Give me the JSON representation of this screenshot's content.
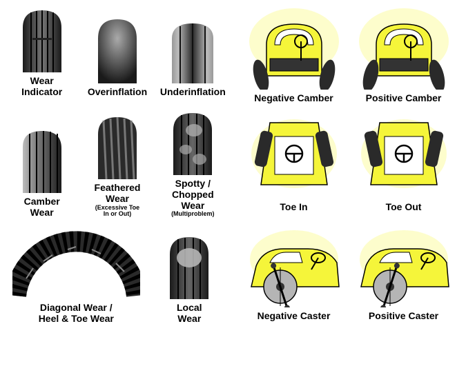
{
  "colors": {
    "tire_dark": "#2a2a2a",
    "tire_mid": "#4a4a4a",
    "tire_light": "#888888",
    "tire_highlight": "#bbbbbb",
    "car_body": "#f5f53a",
    "car_glow": "#fcfc9a",
    "car_outline": "#000000",
    "wheel_gray": "#999999",
    "bg": "#ffffff"
  },
  "tires": {
    "row1": [
      {
        "label": "Wear\nIndicator",
        "sublabel": ""
      },
      {
        "label": "Overinflation",
        "sublabel": ""
      },
      {
        "label": "Underinflation",
        "sublabel": ""
      }
    ],
    "row2": [
      {
        "label": "Camber\nWear",
        "sublabel": ""
      },
      {
        "label": "Feathered\nWear",
        "sublabel": "(Excessive Toe\nIn or Out)"
      },
      {
        "label": "Spotty /\nChopped\nWear",
        "sublabel": "(Multiproblem)"
      }
    ],
    "row3": [
      {
        "label": "Diagonal Wear /\nHeel & Toe Wear",
        "sublabel": ""
      },
      {
        "label": "Local\nWear",
        "sublabel": ""
      }
    ]
  },
  "cars": {
    "row1": [
      {
        "label": "Negative Camber"
      },
      {
        "label": "Positive Camber"
      }
    ],
    "row2": [
      {
        "label": "Toe In"
      },
      {
        "label": "Toe Out"
      }
    ],
    "row3": [
      {
        "label": "Negative Caster"
      },
      {
        "label": "Positive Caster"
      }
    ]
  }
}
